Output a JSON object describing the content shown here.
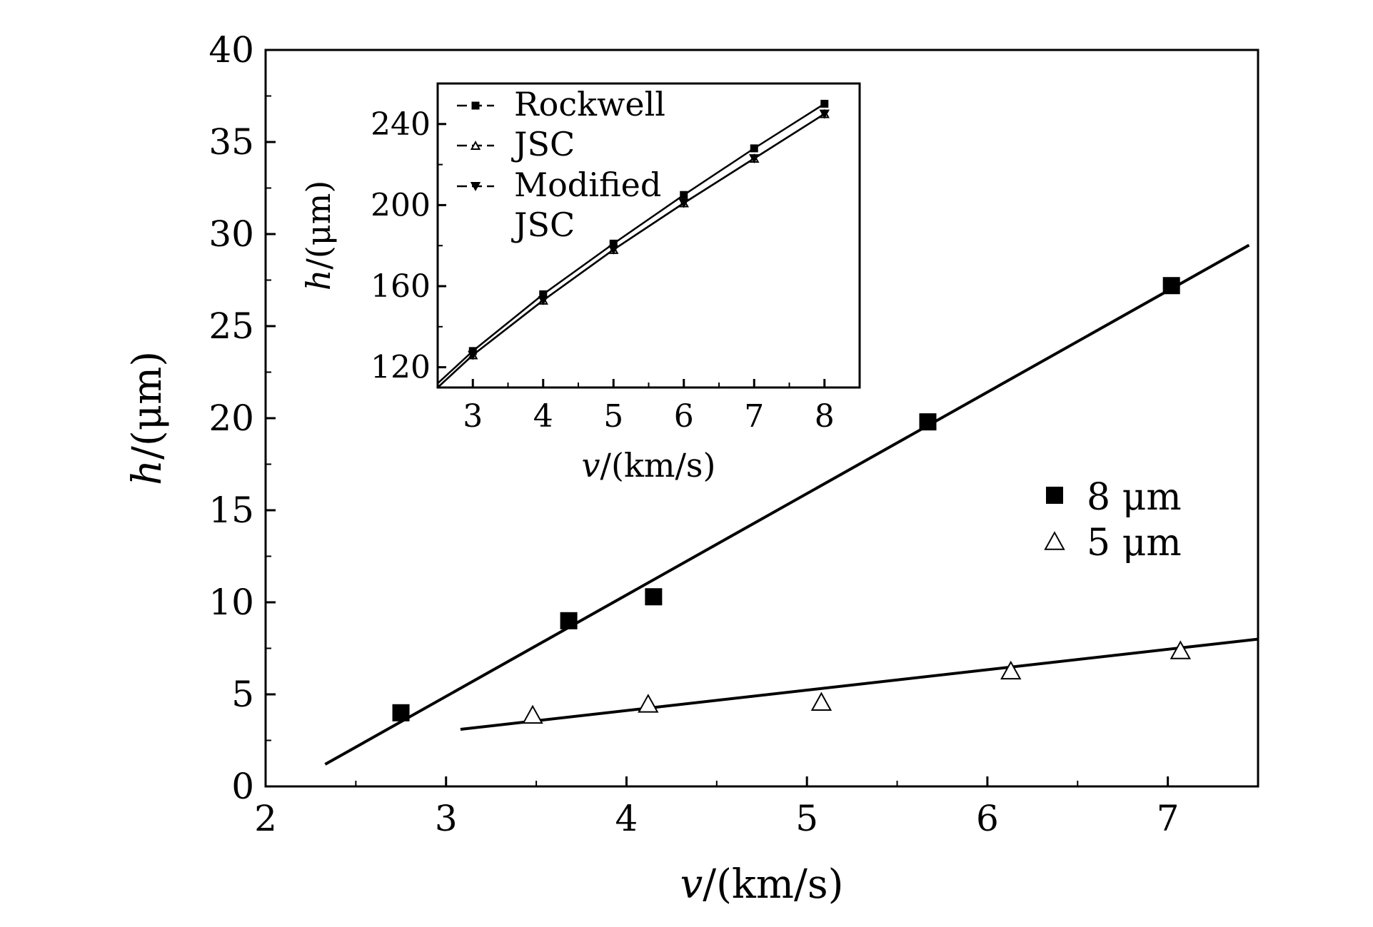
{
  "chart_data": [
    {
      "type": "scatter",
      "xlabel_italic": "v",
      "xlabel_rest": "/(km/s)",
      "ylabel_italic": "h",
      "ylabel_rest": "/(μm)",
      "xlim": [
        2,
        7.5
      ],
      "ylim": [
        0,
        40
      ],
      "xticks": [
        "2",
        "3",
        "4",
        "5",
        "6",
        "7"
      ],
      "yticks": [
        "0",
        "5",
        "10",
        "15",
        "20",
        "25",
        "30",
        "35",
        "40"
      ],
      "grid": false,
      "legend_position": "right",
      "series": [
        {
          "name": "8 μm",
          "marker": "filled-square",
          "points": [
            [
              2.75,
              4.0
            ],
            [
              3.68,
              9.0
            ],
            [
              4.15,
              10.3
            ],
            [
              5.67,
              19.8
            ],
            [
              7.02,
              27.2
            ]
          ],
          "fit_line": [
            [
              2.33,
              1.2
            ],
            [
              7.45,
              29.4
            ]
          ]
        },
        {
          "name": "5 μm",
          "marker": "open-triangle",
          "points": [
            [
              3.48,
              3.9
            ],
            [
              4.12,
              4.5
            ],
            [
              5.08,
              4.6
            ],
            [
              6.13,
              6.3
            ],
            [
              7.07,
              7.4
            ]
          ],
          "fit_line": [
            [
              3.08,
              3.1
            ],
            [
              7.5,
              8.0
            ]
          ]
        }
      ]
    },
    {
      "type": "line",
      "inset": true,
      "xlabel_italic": "v",
      "xlabel_rest": "/(km/s)",
      "ylabel_italic": "h",
      "ylabel_rest": "/(μm)",
      "xlim": [
        2.5,
        8.5
      ],
      "ylim": [
        110,
        260
      ],
      "xticks": [
        "3",
        "4",
        "5",
        "6",
        "7",
        "8"
      ],
      "yticks": [
        "120",
        "160",
        "200",
        "240"
      ],
      "grid": false,
      "legend_position": "top-left",
      "series": [
        {
          "name": "Rockwell",
          "marker": "square",
          "x": [
            2.5,
            3,
            4,
            5,
            6,
            7,
            8
          ],
          "y": [
            112,
            128,
            156,
            181,
            205,
            228,
            250
          ]
        },
        {
          "name": "JSC",
          "marker": "triangle-up",
          "x": [
            2.5,
            3,
            4,
            5,
            6,
            7,
            8
          ],
          "y": [
            110,
            126,
            153,
            178,
            201,
            223,
            245
          ]
        },
        {
          "name": "Modified\nJSC",
          "marker": "triangle-down",
          "x": [
            2.5,
            3,
            4,
            5,
            6,
            7,
            8
          ],
          "y": [
            110,
            126,
            153,
            178,
            201,
            223,
            245
          ]
        }
      ]
    }
  ]
}
